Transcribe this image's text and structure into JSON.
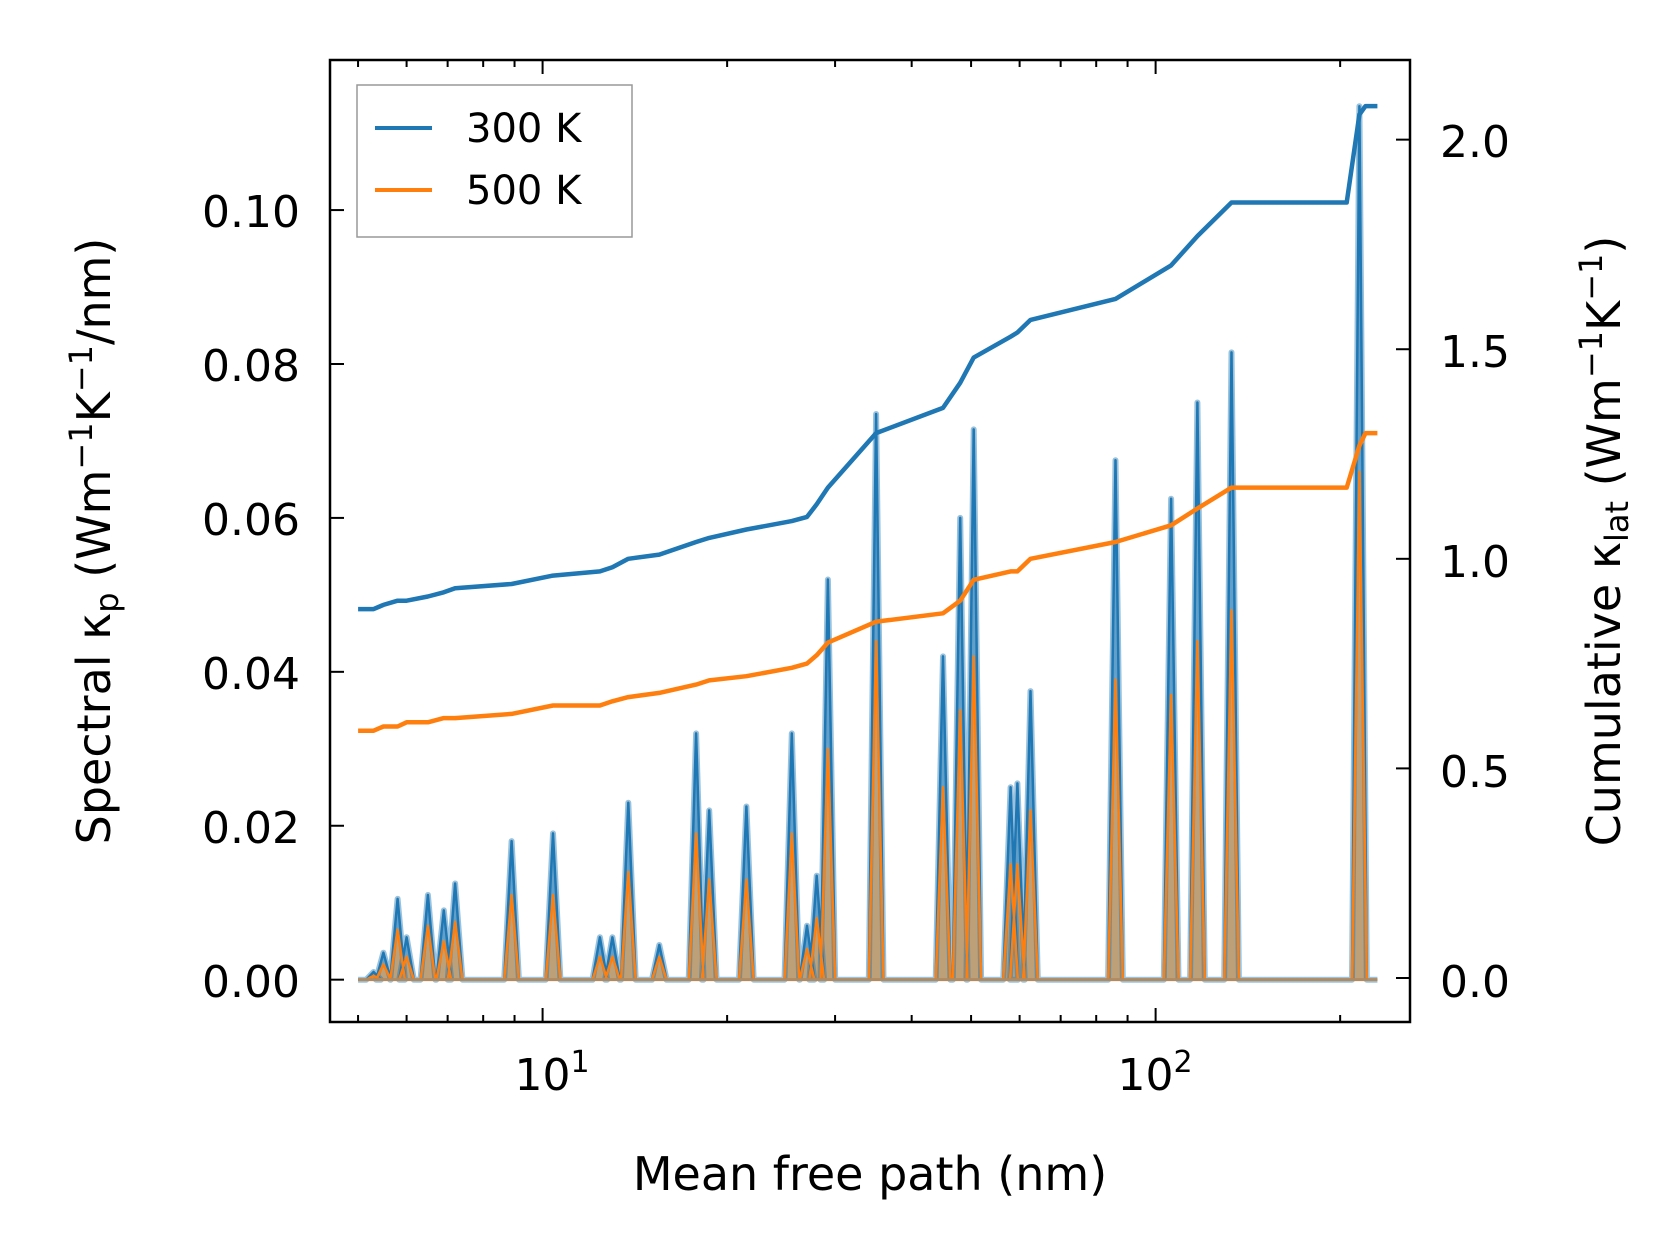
{
  "chart_data": {
    "type": "line",
    "xscale": "log",
    "xlabel": "Mean free path (nm)",
    "ylabel_left_prefix": "Spectral κ",
    "ylabel_left_sub": "p",
    "ylabel_left_unit_open": " (Wm",
    "ylabel_left_exp1": "−1",
    "ylabel_left_unit_mid": "K",
    "ylabel_left_exp2": "−1",
    "ylabel_left_unit_close": "/nm)",
    "ylabel_right_prefix": "Cumulative κ",
    "ylabel_right_sub": "lat",
    "ylabel_right_unit_open": " (Wm",
    "ylabel_right_exp1": "−1",
    "ylabel_right_unit_mid": "K",
    "ylabel_right_exp2": "−1",
    "ylabel_right_unit_close": ")",
    "xlim": [
      4.5,
      260
    ],
    "ylim_left": [
      -0.0055,
      0.1195
    ],
    "ylim_right": [
      -0.105,
      2.19
    ],
    "xticks": [
      {
        "base": "10",
        "exp": "1",
        "value": 10
      },
      {
        "base": "10",
        "exp": "2",
        "value": 100
      }
    ],
    "yticks_left": [
      "0.00",
      "0.02",
      "0.04",
      "0.06",
      "0.08",
      "0.10"
    ],
    "yticks_left_values": [
      0,
      0.02,
      0.04,
      0.06,
      0.08,
      0.1
    ],
    "yticks_right": [
      "0.0",
      "0.5",
      "1.0",
      "1.5",
      "2.0"
    ],
    "yticks_right_values": [
      0,
      0.5,
      1.0,
      1.5,
      2.0
    ],
    "legend_position": "top-left",
    "series": [
      {
        "name": "300 K",
        "color": "#1f77b4"
      },
      {
        "name": "500 K",
        "color": "#ff7f0e"
      }
    ],
    "spectral_peaks_300K": [
      [
        5.3,
        0.001
      ],
      [
        5.5,
        0.0035
      ],
      [
        5.8,
        0.0105
      ],
      [
        6.0,
        0.0055
      ],
      [
        6.5,
        0.011
      ],
      [
        6.9,
        0.009
      ],
      [
        7.2,
        0.0125
      ],
      [
        8.9,
        0.018
      ],
      [
        10.4,
        0.019
      ],
      [
        12.4,
        0.0055
      ],
      [
        13.0,
        0.0055
      ],
      [
        13.8,
        0.023
      ],
      [
        15.5,
        0.0045
      ],
      [
        17.8,
        0.032
      ],
      [
        18.7,
        0.022
      ],
      [
        21.5,
        0.0225
      ],
      [
        25.5,
        0.032
      ],
      [
        27.0,
        0.007
      ],
      [
        28.0,
        0.0135
      ],
      [
        29.2,
        0.052
      ],
      [
        35.0,
        0.0735
      ],
      [
        45.0,
        0.042
      ],
      [
        48.0,
        0.06
      ],
      [
        50.5,
        0.0715
      ],
      [
        58.0,
        0.025
      ],
      [
        59.5,
        0.0255
      ],
      [
        62.5,
        0.0375
      ],
      [
        86.0,
        0.0675
      ],
      [
        106.0,
        0.0625
      ],
      [
        117.0,
        0.075
      ],
      [
        133.0,
        0.0815
      ],
      [
        215.0,
        0.1135
      ]
    ],
    "spectral_peaks_500K": [
      [
        5.3,
        0.0005
      ],
      [
        5.5,
        0.002
      ],
      [
        5.8,
        0.0065
      ],
      [
        6.0,
        0.003
      ],
      [
        6.5,
        0.007
      ],
      [
        6.9,
        0.005
      ],
      [
        7.2,
        0.0075
      ],
      [
        8.9,
        0.011
      ],
      [
        10.4,
        0.011
      ],
      [
        12.4,
        0.003
      ],
      [
        13.0,
        0.003
      ],
      [
        13.8,
        0.014
      ],
      [
        15.5,
        0.003
      ],
      [
        17.8,
        0.019
      ],
      [
        18.7,
        0.013
      ],
      [
        21.5,
        0.013
      ],
      [
        25.5,
        0.019
      ],
      [
        27.0,
        0.004
      ],
      [
        28.0,
        0.008
      ],
      [
        29.2,
        0.03
      ],
      [
        35.0,
        0.044
      ],
      [
        45.0,
        0.025
      ],
      [
        48.0,
        0.035
      ],
      [
        50.5,
        0.042
      ],
      [
        58.0,
        0.015
      ],
      [
        59.5,
        0.015
      ],
      [
        62.5,
        0.022
      ],
      [
        86.0,
        0.039
      ],
      [
        106.0,
        0.037
      ],
      [
        117.0,
        0.044
      ],
      [
        133.0,
        0.048
      ],
      [
        215.0,
        0.066
      ]
    ],
    "cumulative_300K": [
      [
        5.0,
        0.88
      ],
      [
        5.3,
        0.88
      ],
      [
        5.5,
        0.89
      ],
      [
        5.8,
        0.9
      ],
      [
        6.0,
        0.9
      ],
      [
        6.5,
        0.91
      ],
      [
        6.9,
        0.92
      ],
      [
        7.2,
        0.93
      ],
      [
        8.9,
        0.94
      ],
      [
        10.4,
        0.96
      ],
      [
        12.4,
        0.97
      ],
      [
        13.0,
        0.98
      ],
      [
        13.8,
        1.0
      ],
      [
        15.5,
        1.01
      ],
      [
        17.8,
        1.04
      ],
      [
        18.7,
        1.05
      ],
      [
        21.5,
        1.07
      ],
      [
        25.5,
        1.09
      ],
      [
        27.0,
        1.1
      ],
      [
        28.0,
        1.13
      ],
      [
        29.2,
        1.17
      ],
      [
        35.0,
        1.3
      ],
      [
        45.0,
        1.36
      ],
      [
        48.0,
        1.42
      ],
      [
        50.5,
        1.48
      ],
      [
        58.0,
        1.53
      ],
      [
        59.5,
        1.54
      ],
      [
        62.5,
        1.57
      ],
      [
        86.0,
        1.62
      ],
      [
        106.0,
        1.7
      ],
      [
        117.0,
        1.77
      ],
      [
        133.0,
        1.85
      ],
      [
        205.0,
        1.85
      ],
      [
        215.0,
        2.06
      ],
      [
        220.0,
        2.08
      ],
      [
        230.0,
        2.08
      ]
    ],
    "cumulative_500K": [
      [
        5.0,
        0.59
      ],
      [
        5.3,
        0.59
      ],
      [
        5.5,
        0.6
      ],
      [
        5.8,
        0.6
      ],
      [
        6.0,
        0.61
      ],
      [
        6.5,
        0.61
      ],
      [
        6.9,
        0.62
      ],
      [
        7.2,
        0.62
      ],
      [
        8.9,
        0.63
      ],
      [
        10.4,
        0.65
      ],
      [
        12.4,
        0.65
      ],
      [
        13.0,
        0.66
      ],
      [
        13.8,
        0.67
      ],
      [
        15.5,
        0.68
      ],
      [
        17.8,
        0.7
      ],
      [
        18.7,
        0.71
      ],
      [
        21.5,
        0.72
      ],
      [
        25.5,
        0.74
      ],
      [
        27.0,
        0.75
      ],
      [
        28.0,
        0.77
      ],
      [
        29.2,
        0.8
      ],
      [
        35.0,
        0.85
      ],
      [
        45.0,
        0.87
      ],
      [
        48.0,
        0.9
      ],
      [
        50.5,
        0.95
      ],
      [
        58.0,
        0.97
      ],
      [
        59.5,
        0.97
      ],
      [
        62.5,
        1.0
      ],
      [
        86.0,
        1.04
      ],
      [
        106.0,
        1.08
      ],
      [
        117.0,
        1.12
      ],
      [
        133.0,
        1.17
      ],
      [
        205.0,
        1.17
      ],
      [
        215.0,
        1.27
      ],
      [
        220.0,
        1.3
      ],
      [
        230.0,
        1.3
      ]
    ]
  }
}
